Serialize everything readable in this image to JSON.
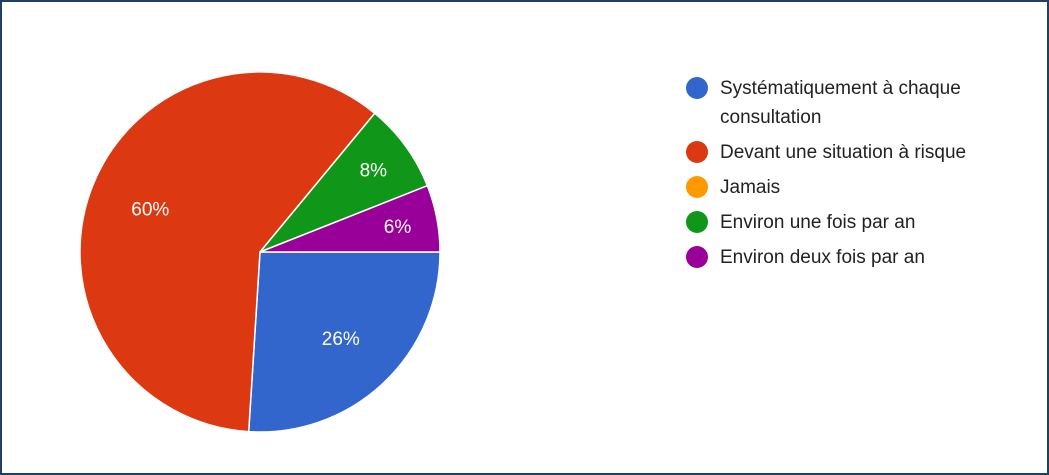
{
  "chart_data": {
    "type": "pie",
    "title": "",
    "start_angle_deg": 90,
    "direction": "clockwise",
    "legend_position": "right",
    "categories": [
      "Systématiquement à chaque consultation",
      "Devant une situation à risque",
      "Jamais",
      "Environ une fois par an",
      "Environ deux fois par an"
    ],
    "values": [
      26,
      60,
      0,
      8,
      6
    ],
    "labels": [
      "26%",
      "60%",
      "",
      "8%",
      "6%"
    ],
    "colors": [
      "#3366cc",
      "#dc3912",
      "#ff9900",
      "#109618",
      "#990099"
    ]
  }
}
